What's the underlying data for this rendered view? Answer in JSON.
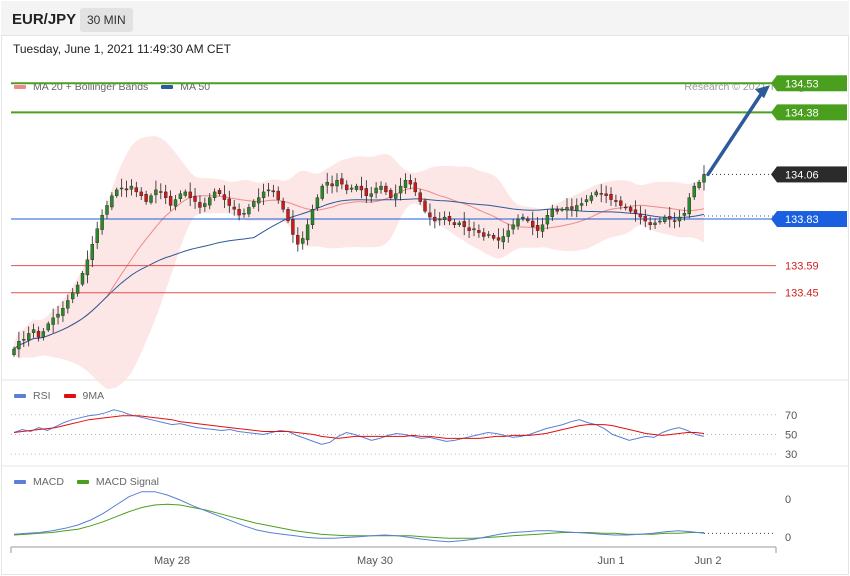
{
  "header": {
    "symbol": "EUR/JPY",
    "timeframe": "30 MIN",
    "datetime": "Tuesday, June 1, 2021 11:49:30 AM CET",
    "copyright": "Research © 2021 Trading Central"
  },
  "legends": {
    "main": [
      {
        "label": "MA 20 + Bollinger Bands",
        "color": "#f08a8a"
      },
      {
        "label": "MA 50",
        "color": "#2d5a99"
      }
    ],
    "rsi": [
      {
        "label": "RSI",
        "color": "#5b7fd6"
      },
      {
        "label": "9MA",
        "color": "#e01010"
      }
    ],
    "macd": [
      {
        "label": "MACD",
        "color": "#5b7fd6"
      },
      {
        "label": "MACD Signal",
        "color": "#4aa01e"
      }
    ]
  },
  "colors": {
    "bullish": "#2a8a2a",
    "bearish": "#cc1a1a",
    "resistance": "#4aa01e",
    "pivot": "#1a5fe0",
    "support": "#e05050",
    "last_price": "#2b2b2b",
    "arrow": "#2d5a99",
    "band_fill": "#fde2e2"
  },
  "chart_data": {
    "type": "candlestick",
    "symbol": "EUR/JPY",
    "interval": "30 MIN",
    "ylim": [
      133.0,
      134.65
    ],
    "x_ticks": [
      "May 28",
      "May 30",
      "Jun 1",
      "Jun 2"
    ],
    "price_levels": [
      {
        "value": 134.53,
        "label": "134.53",
        "kind": "resistance"
      },
      {
        "value": 134.38,
        "label": "134.38",
        "kind": "resistance"
      },
      {
        "value": 134.06,
        "label": "134.06",
        "kind": "last_price"
      },
      {
        "value": 133.83,
        "label": "133.83",
        "kind": "pivot"
      },
      {
        "value": 133.59,
        "label": "133.59",
        "kind": "support"
      },
      {
        "value": 133.45,
        "label": "133.45",
        "kind": "support"
      }
    ],
    "target_arrow": {
      "from": 134.06,
      "to": 134.53
    },
    "close": [
      133.16,
      133.2,
      133.21,
      133.24,
      133.26,
      133.22,
      133.25,
      133.29,
      133.32,
      133.34,
      133.37,
      133.41,
      133.45,
      133.49,
      133.55,
      133.62,
      133.7,
      133.78,
      133.85,
      133.9,
      133.95,
      133.98,
      133.99,
      133.98,
      134.0,
      133.97,
      133.95,
      133.92,
      133.95,
      133.98,
      133.97,
      133.94,
      133.9,
      133.93,
      133.96,
      133.97,
      133.94,
      133.92,
      133.89,
      133.91,
      133.94,
      133.97,
      133.96,
      133.93,
      133.9,
      133.88,
      133.85,
      133.86,
      133.89,
      133.92,
      133.94,
      133.97,
      133.98,
      133.97,
      133.93,
      133.88,
      133.82,
      133.75,
      133.7,
      133.73,
      133.8,
      133.88,
      133.94,
      134.0,
      134.02,
      134.0,
      134.03,
      134.01,
      133.98,
      133.99,
      134.0,
      133.98,
      133.95,
      133.96,
      133.99,
      134.0,
      133.97,
      133.94,
      133.96,
      134.0,
      134.03,
      134.01,
      133.97,
      133.92,
      133.87,
      133.84,
      133.82,
      133.83,
      133.84,
      133.82,
      133.8,
      133.81,
      133.79,
      133.77,
      133.78,
      133.76,
      133.74,
      133.75,
      133.73,
      133.72,
      133.74,
      133.77,
      133.8,
      133.83,
      133.84,
      133.82,
      133.79,
      133.77,
      133.8,
      133.85,
      133.88,
      133.87,
      133.88,
      133.89,
      133.88,
      133.9,
      133.91,
      133.93,
      133.95,
      133.97,
      133.96,
      133.95,
      133.93,
      133.92,
      133.9,
      133.89,
      133.87,
      133.86,
      133.84,
      133.82,
      133.8,
      133.81,
      133.82,
      133.84,
      133.83,
      133.82,
      133.84,
      133.86,
      133.94,
      134.0,
      134.02,
      134.06
    ],
    "rsi": {
      "levels": [
        70,
        50,
        30
      ],
      "rsi": [
        52,
        55,
        53,
        57,
        54,
        58,
        62,
        65,
        67,
        69,
        70,
        72,
        75,
        73,
        70,
        68,
        66,
        64,
        62,
        60,
        61,
        59,
        57,
        56,
        55,
        54,
        55,
        53,
        52,
        51,
        50,
        52,
        54,
        53,
        49,
        46,
        43,
        40,
        42,
        48,
        52,
        50,
        47,
        44,
        46,
        49,
        51,
        50,
        48,
        46,
        47,
        45,
        43,
        44,
        46,
        48,
        50,
        52,
        51,
        49,
        47,
        48,
        50,
        53,
        56,
        58,
        60,
        63,
        65,
        62,
        60,
        56,
        50,
        47,
        44,
        46,
        48,
        47,
        52,
        55,
        57,
        54,
        50,
        48
      ],
      "ma9": [
        52,
        53,
        54,
        55,
        56,
        57,
        59,
        61,
        63,
        65,
        66,
        67,
        68,
        69,
        69,
        69,
        68,
        67,
        66,
        65,
        63,
        62,
        61,
        60,
        59,
        58,
        57,
        56,
        55,
        54,
        53,
        53,
        53,
        53,
        52,
        51,
        50,
        48,
        47,
        46,
        47,
        48,
        48,
        48,
        48,
        48,
        48,
        48,
        49,
        48,
        48,
        47,
        46,
        46,
        46,
        46,
        46,
        47,
        48,
        48,
        49,
        49,
        49,
        50,
        51,
        53,
        55,
        57,
        59,
        60,
        60,
        60,
        59,
        57,
        55,
        53,
        51,
        50,
        49,
        50,
        51,
        52,
        52,
        51
      ]
    },
    "macd": {
      "macd": [
        -1,
        0,
        1,
        3,
        6,
        10,
        16,
        24,
        34,
        44,
        50,
        50,
        46,
        40,
        33,
        27,
        21,
        15,
        9,
        4,
        1,
        -1,
        -3,
        -5,
        -6,
        -6,
        -5,
        -4,
        -3,
        -2,
        -3,
        -5,
        -7,
        -9,
        -10,
        -9,
        -7,
        -4,
        -1,
        1,
        2,
        3,
        3,
        2,
        1,
        0,
        -1,
        -2,
        -2,
        -1,
        0,
        2,
        3,
        2,
        0
      ],
      "signal": [
        -2,
        -1,
        0,
        1,
        3,
        5,
        9,
        14,
        20,
        26,
        31,
        34,
        35,
        34,
        31,
        28,
        24,
        20,
        16,
        12,
        9,
        6,
        3,
        1,
        -1,
        -2,
        -3,
        -3,
        -3,
        -3,
        -3,
        -3,
        -4,
        -5,
        -6,
        -6,
        -6,
        -5,
        -4,
        -3,
        -2,
        -1,
        0,
        1,
        1,
        1,
        0,
        0,
        -1,
        -1,
        -1,
        0,
        0,
        1,
        1
      ]
    }
  }
}
